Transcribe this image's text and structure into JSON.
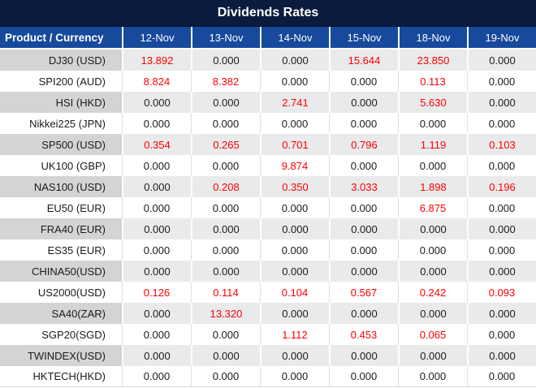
{
  "title": "Dividends Rates",
  "colors": {
    "title_bg": "#0b1b3d",
    "header_bg": "#17499c",
    "stripe_label_bg": "#d2d4d5",
    "stripe_value_bg": "#e9eaeb",
    "red_value": "#fe0000",
    "zero_value": "#1b1b1b"
  },
  "table": {
    "product_header": "Product / Currency",
    "date_headers": [
      "12-Nov",
      "13-Nov",
      "14-Nov",
      "15-Nov",
      "18-Nov",
      "19-Nov"
    ],
    "rows": [
      {
        "product": "DJ30 (USD)",
        "values": [
          "13.892",
          "0.000",
          "0.000",
          "15.644",
          "23.850",
          "0.000"
        ],
        "red": [
          true,
          false,
          false,
          true,
          true,
          false
        ]
      },
      {
        "product": "SPI200 (AUD)",
        "values": [
          "8.824",
          "8.382",
          "0.000",
          "0.000",
          "0.113",
          "0.000"
        ],
        "red": [
          true,
          true,
          false,
          false,
          true,
          false
        ]
      },
      {
        "product": "HSI (HKD)",
        "values": [
          "0.000",
          "0.000",
          "2.741",
          "0.000",
          "5.630",
          "0.000"
        ],
        "red": [
          false,
          false,
          true,
          false,
          true,
          false
        ]
      },
      {
        "product": "Nikkei225 (JPN)",
        "values": [
          "0.000",
          "0.000",
          "0.000",
          "0.000",
          "0.000",
          "0.000"
        ],
        "red": [
          false,
          false,
          false,
          false,
          false,
          false
        ]
      },
      {
        "product": "SP500 (USD)",
        "values": [
          "0.354",
          "0.265",
          "0.701",
          "0.796",
          "1.119",
          "0.103"
        ],
        "red": [
          true,
          true,
          true,
          true,
          true,
          true
        ]
      },
      {
        "product": "UK100 (GBP)",
        "values": [
          "0.000",
          "0.000",
          "9.874",
          "0.000",
          "0.000",
          "0.000"
        ],
        "red": [
          false,
          false,
          true,
          false,
          false,
          false
        ]
      },
      {
        "product": "NAS100 (USD)",
        "values": [
          "0.000",
          "0.208",
          "0.350",
          "3.033",
          "1.898",
          "0.196"
        ],
        "red": [
          false,
          true,
          true,
          true,
          true,
          true
        ]
      },
      {
        "product": "EU50 (EUR)",
        "values": [
          "0.000",
          "0.000",
          "0.000",
          "0.000",
          "6.875",
          "0.000"
        ],
        "red": [
          false,
          false,
          false,
          false,
          true,
          false
        ]
      },
      {
        "product": "FRA40 (EUR)",
        "values": [
          "0.000",
          "0.000",
          "0.000",
          "0.000",
          "0.000",
          "0.000"
        ],
        "red": [
          false,
          false,
          false,
          false,
          false,
          false
        ]
      },
      {
        "product": "ES35 (EUR)",
        "values": [
          "0.000",
          "0.000",
          "0.000",
          "0.000",
          "0.000",
          "0.000"
        ],
        "red": [
          false,
          false,
          false,
          false,
          false,
          false
        ]
      },
      {
        "product": "CHINA50(USD)",
        "values": [
          "0.000",
          "0.000",
          "0.000",
          "0.000",
          "0.000",
          "0.000"
        ],
        "red": [
          false,
          false,
          false,
          false,
          false,
          false
        ]
      },
      {
        "product": "US2000(USD)",
        "values": [
          "0.126",
          "0.114",
          "0.104",
          "0.567",
          "0.242",
          "0.093"
        ],
        "red": [
          true,
          true,
          true,
          true,
          true,
          true
        ]
      },
      {
        "product": "SA40(ZAR)",
        "values": [
          "0.000",
          "13.320",
          "0.000",
          "0.000",
          "0.000",
          "0.000"
        ],
        "red": [
          false,
          true,
          false,
          false,
          false,
          false
        ]
      },
      {
        "product": "SGP20(SGD)",
        "values": [
          "0.000",
          "0.000",
          "1.112",
          "0.453",
          "0.065",
          "0.000"
        ],
        "red": [
          false,
          false,
          true,
          true,
          true,
          false
        ]
      },
      {
        "product": "TWINDEX(USD)",
        "values": [
          "0.000",
          "0.000",
          "0.000",
          "0.000",
          "0.000",
          "0.000"
        ],
        "red": [
          false,
          false,
          false,
          false,
          false,
          false
        ]
      },
      {
        "product": "HKTECH(HKD)",
        "values": [
          "0.000",
          "0.000",
          "0.000",
          "0.000",
          "0.000",
          "0.000"
        ],
        "red": [
          false,
          false,
          false,
          false,
          false,
          false
        ]
      }
    ]
  }
}
